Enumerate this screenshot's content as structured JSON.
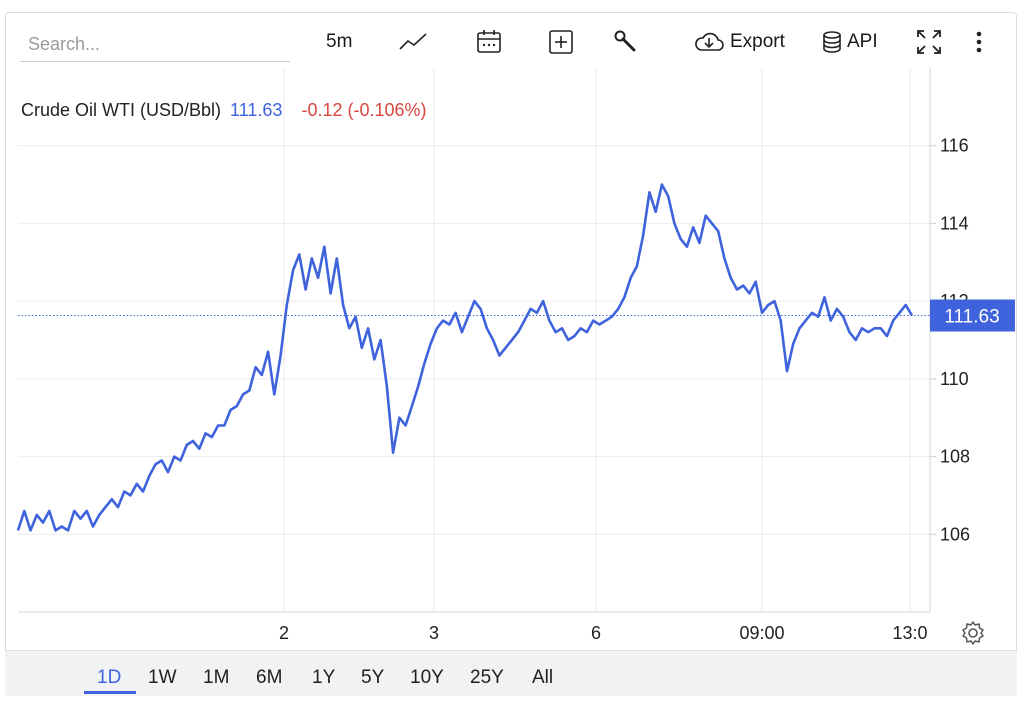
{
  "toolbar": {
    "search_placeholder": "Search...",
    "interval_label": "5m",
    "export_label": "Export",
    "api_label": "API"
  },
  "legend": {
    "name": "Crude Oil WTI (USD/Bbl)",
    "price": "111.63",
    "change": "-0.12 (-0.106%)"
  },
  "price_tag": "111.63",
  "range_tabs": [
    "1D",
    "1W",
    "1M",
    "6M",
    "1Y",
    "5Y",
    "10Y",
    "25Y",
    "All"
  ],
  "active_range": "1D",
  "colors": {
    "line": "#3e63dd",
    "price_tag_bg": "#3e63dd",
    "negative": "#d9453f",
    "grid": "#ebebeb"
  },
  "chart_data": {
    "type": "line",
    "title": "Crude Oil WTI (USD/Bbl)",
    "grid": true,
    "ylim": [
      104,
      118
    ],
    "y_ticks": [
      106,
      108,
      110,
      112,
      114,
      116
    ],
    "x_ticks": [
      "2",
      "3",
      "6",
      "09:00",
      "13:0"
    ],
    "series": [
      {
        "name": "Crude Oil WTI (USD/Bbl)",
        "values": [
          106.1,
          106.6,
          106.1,
          106.5,
          106.3,
          106.6,
          106.1,
          106.2,
          106.1,
          106.6,
          106.4,
          106.6,
          106.2,
          106.5,
          106.7,
          106.9,
          106.7,
          107.1,
          107.0,
          107.3,
          107.1,
          107.5,
          107.8,
          107.9,
          107.6,
          108.0,
          107.9,
          108.3,
          108.4,
          108.2,
          108.6,
          108.5,
          108.8,
          108.8,
          109.2,
          109.3,
          109.6,
          109.7,
          110.3,
          110.1,
          110.7,
          109.6,
          110.6,
          111.9,
          112.8,
          113.2,
          112.3,
          113.1,
          112.6,
          113.4,
          112.2,
          113.1,
          111.9,
          111.3,
          111.6,
          110.8,
          111.3,
          110.5,
          111.0,
          109.8,
          108.1,
          109.0,
          108.8,
          109.3,
          109.8,
          110.4,
          110.9,
          111.3,
          111.5,
          111.4,
          111.7,
          111.2,
          111.6,
          112.0,
          111.8,
          111.3,
          111.0,
          110.6,
          110.8,
          111.0,
          111.2,
          111.5,
          111.8,
          111.7,
          112.0,
          111.5,
          111.2,
          111.3,
          111.0,
          111.1,
          111.3,
          111.2,
          111.5,
          111.4,
          111.5,
          111.6,
          111.8,
          112.1,
          112.6,
          112.9,
          113.7,
          114.8,
          114.3,
          115.0,
          114.7,
          114.0,
          113.6,
          113.4,
          113.9,
          113.5,
          114.2,
          114.0,
          113.8,
          113.1,
          112.6,
          112.3,
          112.4,
          112.2,
          112.5,
          111.7,
          111.9,
          112.0,
          111.5,
          110.2,
          110.9,
          111.3,
          111.5,
          111.7,
          111.6,
          112.1,
          111.5,
          111.8,
          111.6,
          111.2,
          111.0,
          111.3,
          111.2,
          111.3,
          111.3,
          111.1,
          111.5,
          111.7,
          111.9,
          111.63
        ]
      }
    ]
  }
}
